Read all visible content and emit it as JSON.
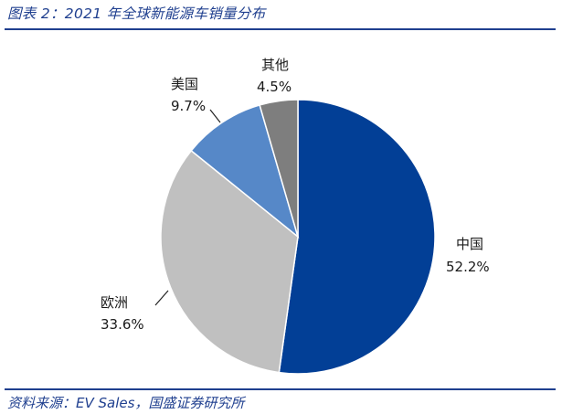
{
  "figure": {
    "title": "图表 2：2021 年全球新能源车销量分布",
    "source": "资料来源：EV Sales，国盛证券研究所"
  },
  "chart_data": {
    "type": "pie",
    "title": "2021 年全球新能源车销量分布",
    "unit": "%",
    "slices": [
      {
        "name": "中国",
        "value": 52.2,
        "display": "52.2%",
        "color": "#023F96"
      },
      {
        "name": "欧洲",
        "value": 33.6,
        "display": "33.6%",
        "color": "#C0C0C0"
      },
      {
        "name": "美国",
        "value": 9.7,
        "display": "9.7%",
        "color": "#5688C8"
      },
      {
        "name": "其他",
        "value": 4.5,
        "display": "4.5%",
        "color": "#7E7E7E"
      }
    ],
    "start": "12 o'clock",
    "direction": "clockwise"
  }
}
